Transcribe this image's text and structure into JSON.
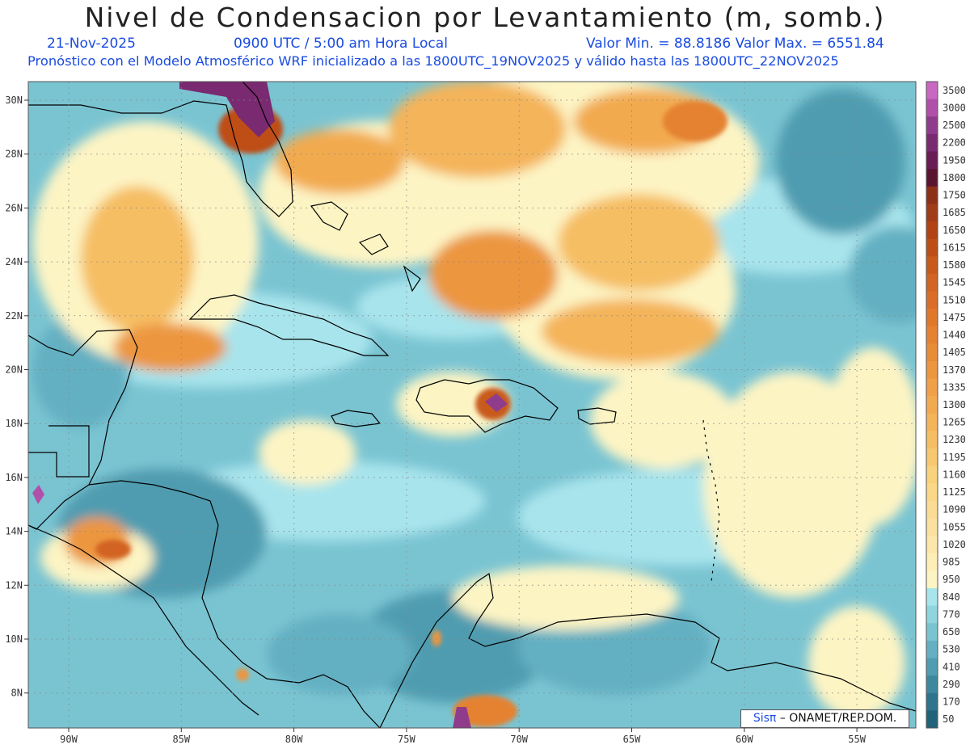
{
  "header": {
    "title": "Nivel de Condensacion por Levantamiento (m, somb.)",
    "date": "21-Nov-2025",
    "time": "0900 UTC / 5:00 am Hora Local",
    "min_max": "Valor Min. = 88.8186  Valor Max. = 6551.84",
    "forecast": "Pronóstico con el Modelo Atmosférico WRF inicializado a las 1800UTC_19NOV2025 y válido hasta las  1800UTC_22NOV2025"
  },
  "map": {
    "lat_ticks": [
      "30N",
      "28N",
      "26N",
      "24N",
      "22N",
      "20N",
      "18N",
      "16N",
      "14N",
      "12N",
      "10N",
      "8N"
    ],
    "lon_ticks": [
      "90W",
      "85W",
      "80W",
      "75W",
      "70W",
      "65W",
      "60W",
      "55W"
    ],
    "grid_lines": "dotted",
    "coastlines": "black",
    "colorbar": {
      "labels": [
        "3500",
        "3000",
        "2500",
        "2200",
        "1950",
        "1800",
        "1750",
        "1685",
        "1650",
        "1615",
        "1580",
        "1545",
        "1510",
        "1475",
        "1440",
        "1405",
        "1370",
        "1335",
        "1300",
        "1265",
        "1230",
        "1195",
        "1160",
        "1125",
        "1090",
        "1055",
        "1020",
        "985",
        "950",
        "840",
        "770",
        "650",
        "530",
        "410",
        "290",
        "170",
        "50"
      ],
      "colors": [
        "#c868c0",
        "#b050a8",
        "#903c8c",
        "#7a2a70",
        "#6a1c54",
        "#5a1430",
        "#8c3018",
        "#a03c18",
        "#b04414",
        "#be4e18",
        "#c85a1e",
        "#d26424",
        "#da6e28",
        "#e0782c",
        "#e48232",
        "#e88c38",
        "#ec9640",
        "#f0a048",
        "#f2aa50",
        "#f4b45a",
        "#f6be64",
        "#f8c870",
        "#f8d27c",
        "#fad888",
        "#fadc94",
        "#fce0a0",
        "#fce6aa",
        "#fdeeb8",
        "#fdf4c4",
        "#a8e4ec",
        "#90d4e0",
        "#7ac4d2",
        "#64b0c2",
        "#509cb0",
        "#3e889e",
        "#2e748c",
        "#206278"
      ]
    },
    "credit_brand": "Sisπ",
    "credit_text": "– ONAMET/REP.DOM."
  }
}
